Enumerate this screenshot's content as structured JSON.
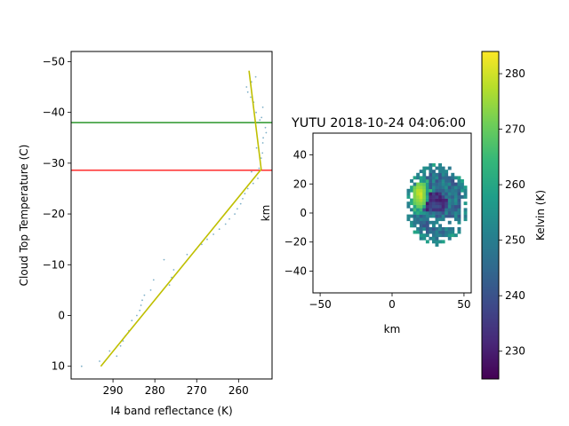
{
  "chart_data": [
    {
      "type": "line",
      "id": "profile",
      "title": "",
      "xlabel": "I4 band reflectance (K)",
      "ylabel": "Cloud Top Temperature (C)",
      "xlim": [
        300,
        252
      ],
      "ylim": [
        12.5,
        -52
      ],
      "xticks": [
        290,
        280,
        270,
        260
      ],
      "xtick_labels": [
        "290",
        "280",
        "270",
        "260"
      ],
      "yticks": [
        -50,
        -40,
        -30,
        -20,
        -10,
        0,
        10
      ],
      "ytick_labels": [
        "−50",
        "−40",
        "−30",
        "−20",
        "−10",
        "0",
        "10"
      ],
      "hlines": [
        {
          "name": "green-line",
          "y": -38,
          "color": "#008000"
        },
        {
          "name": "red-line",
          "y": -28.6,
          "color": "#ff0000"
        }
      ],
      "fit_line": {
        "color": "#bfbf00",
        "points": [
          [
            292.9,
            10
          ],
          [
            254.6,
            -28.8
          ],
          [
            257.5,
            -48.2
          ]
        ]
      },
      "scatter": {
        "color": "#7fb0c8",
        "points": [
          [
            297.5,
            10
          ],
          [
            293.2,
            9
          ],
          [
            290.8,
            7
          ],
          [
            289.1,
            8
          ],
          [
            288.2,
            6
          ],
          [
            287.6,
            5
          ],
          [
            287.0,
            4
          ],
          [
            286.2,
            3
          ],
          [
            285.5,
            1
          ],
          [
            284.3,
            0
          ],
          [
            283.6,
            -1
          ],
          [
            283.3,
            -2
          ],
          [
            283.0,
            -3
          ],
          [
            282.5,
            -4
          ],
          [
            281.0,
            -5
          ],
          [
            280.3,
            -7
          ],
          [
            276.5,
            -6
          ],
          [
            276.0,
            -7.5
          ],
          [
            275.5,
            -9
          ],
          [
            277.8,
            -11
          ],
          [
            272.3,
            -12
          ],
          [
            270.2,
            -13
          ],
          [
            268.8,
            -14
          ],
          [
            267.5,
            -15
          ],
          [
            266.0,
            -16
          ],
          [
            264.6,
            -17
          ],
          [
            263.1,
            -18
          ],
          [
            262.2,
            -19
          ],
          [
            260.9,
            -20
          ],
          [
            260.3,
            -21
          ],
          [
            259.5,
            -22
          ],
          [
            259.0,
            -23
          ],
          [
            258.5,
            -24
          ],
          [
            257.8,
            -25
          ],
          [
            256.5,
            -26
          ],
          [
            255.4,
            -27
          ],
          [
            256.9,
            -28.3
          ],
          [
            255.1,
            -29
          ],
          [
            254.6,
            -31
          ],
          [
            254.3,
            -32
          ],
          [
            255.7,
            -33
          ],
          [
            254.2,
            -34
          ],
          [
            254.1,
            -35
          ],
          [
            253.4,
            -36
          ],
          [
            253.6,
            -37
          ],
          [
            254.9,
            -38.5
          ],
          [
            254.5,
            -39
          ],
          [
            255.8,
            -40
          ],
          [
            254.2,
            -41
          ],
          [
            256.4,
            -42
          ],
          [
            257.1,
            -43
          ],
          [
            257.8,
            -44
          ],
          [
            258.1,
            -45
          ],
          [
            256.9,
            -46
          ],
          [
            255.9,
            -47
          ]
        ]
      }
    },
    {
      "type": "heatmap",
      "id": "storm-image",
      "title": "YUTU 2018-10-24 04:06:00",
      "xlabel": "km",
      "ylabel": "km",
      "xlim": [
        -55,
        55
      ],
      "ylim": [
        -55,
        55
      ],
      "xticks": [
        -50,
        0,
        50
      ],
      "xtick_labels": [
        "−50",
        "0",
        "50"
      ],
      "yticks": [
        40,
        20,
        0,
        -20,
        -40
      ],
      "ytick_labels": [
        "40",
        "20",
        "0",
        "−20",
        "−40"
      ],
      "storm": {
        "center": [
          30,
          5
        ],
        "radius_x": 22,
        "radius_y": 28,
        "hot_region_center": [
          18,
          12
        ],
        "cold_band_center": [
          28,
          6
        ]
      },
      "colorbar": {
        "label": "Kelvin (K)",
        "min": 225,
        "max": 284,
        "ticks": [
          230,
          240,
          250,
          260,
          270,
          280
        ],
        "tick_labels": [
          "230",
          "240",
          "250",
          "260",
          "270",
          "280"
        ],
        "stops": [
          "#440154",
          "#482878",
          "#3e4989",
          "#31688e",
          "#26828e",
          "#1f9e89",
          "#35b779",
          "#6ece58",
          "#b5de2b",
          "#fde725"
        ]
      }
    }
  ]
}
